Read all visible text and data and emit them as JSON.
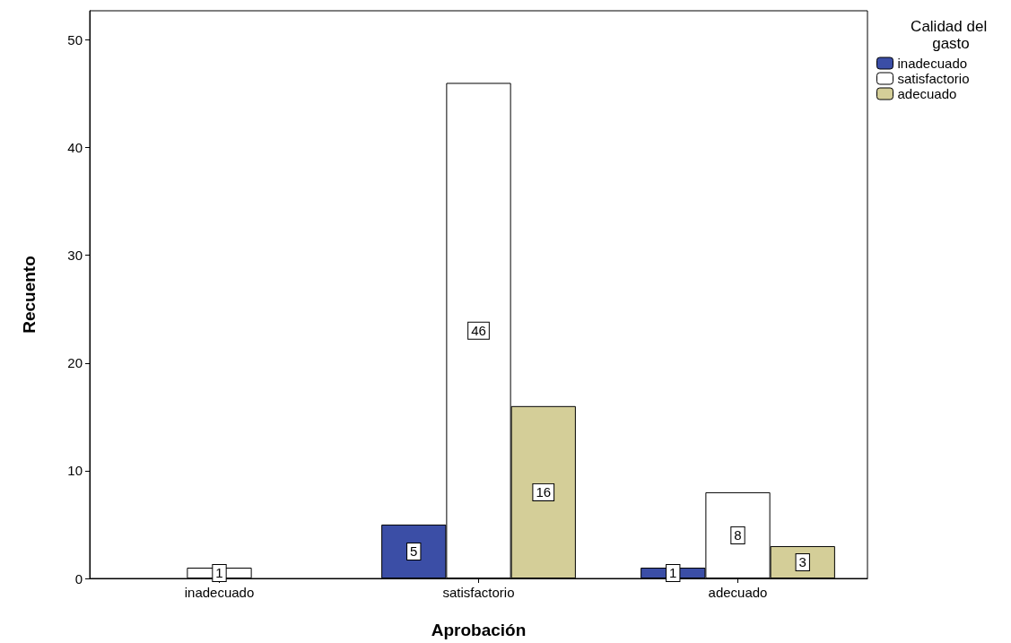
{
  "chart_data": {
    "type": "bar",
    "xlabel": "Aprobación",
    "ylabel": "Recuento",
    "legend_title": "Calidad del gasto",
    "categories": [
      "inadecuado",
      "satisfactorio",
      "adecuado"
    ],
    "series": [
      {
        "name": "inadecuado",
        "color": "#3b4ea6",
        "values": [
          null,
          5,
          1
        ]
      },
      {
        "name": "satisfactorio",
        "color": "#ffffff",
        "values": [
          1,
          46,
          8
        ]
      },
      {
        "name": "adecuado",
        "color": "#d4ce98",
        "values": [
          null,
          16,
          3
        ]
      }
    ],
    "ylim": [
      0,
      52.7
    ],
    "yticks": [
      0,
      10,
      20,
      30,
      40,
      50
    ],
    "grid": false,
    "legend": "top right",
    "data_labels": true
  }
}
